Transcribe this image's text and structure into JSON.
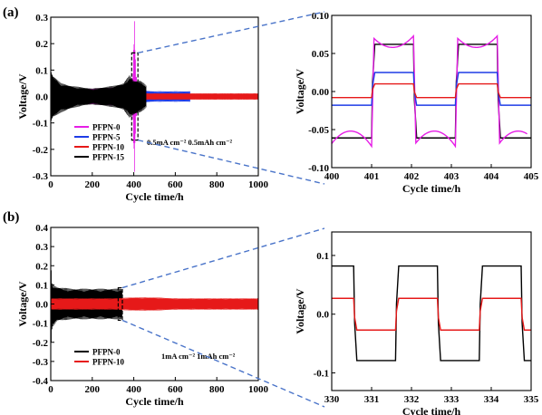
{
  "panels": [
    {
      "label": "(a)"
    },
    {
      "label": "(b)"
    }
  ],
  "chart_data": [
    {
      "id": "a-main",
      "type": "line",
      "xlabel": "Cycle time/h",
      "ylabel": "Voltage/V",
      "xlim": [
        0,
        1000
      ],
      "ylim": [
        -0.3,
        0.3
      ],
      "xticks": [
        "0",
        "200",
        "400",
        "600",
        "800",
        "1000"
      ],
      "yticks": [
        "-0.3",
        "-0.2",
        "-0.1",
        "0.0",
        "0.1",
        "0.2",
        "0.3"
      ],
      "xtick_values": [
        0,
        200,
        400,
        600,
        800,
        1000
      ],
      "ytick_values": [
        -0.3,
        -0.2,
        -0.1,
        0.0,
        0.1,
        0.2,
        0.3
      ],
      "annotation": "0.5mA cm⁻²  0.5mAh cm⁻²",
      "legend_position": "lower-left",
      "zoom_box": {
        "x": [
          390,
          420
        ],
        "y": [
          -0.165,
          0.165
        ]
      },
      "series": [
        {
          "name": "PFPN-0",
          "color": "#e61ee6",
          "kind": "band",
          "x": [
            0,
            30,
            100,
            200,
            300,
            350,
            380,
            395,
            403,
            410,
            418,
            430
          ],
          "top": [
            0.03,
            0.03,
            0.03,
            0.03,
            0.035,
            0.04,
            0.05,
            0.07,
            0.3,
            0.09,
            0.05,
            0.03
          ],
          "bottom": [
            -0.03,
            -0.03,
            -0.03,
            -0.03,
            -0.035,
            -0.04,
            -0.05,
            -0.07,
            -0.3,
            -0.09,
            -0.05,
            -0.03
          ]
        },
        {
          "name": "PFPN-5",
          "color": "#1f3ce6",
          "kind": "band",
          "x": [
            0,
            100,
            200,
            300,
            400,
            500,
            600,
            672
          ],
          "top": [
            0.025,
            0.02,
            0.02,
            0.022,
            0.025,
            0.02,
            0.02,
            0.02
          ],
          "bottom": [
            -0.025,
            -0.02,
            -0.02,
            -0.022,
            -0.025,
            -0.02,
            -0.02,
            -0.02
          ]
        },
        {
          "name": "PFPN-10",
          "color": "#e61919",
          "kind": "band",
          "x": [
            0,
            10,
            40,
            100,
            300,
            500,
            700,
            1000
          ],
          "top": [
            0.05,
            0.04,
            0.015,
            0.012,
            0.012,
            0.012,
            0.012,
            0.012
          ],
          "bottom": [
            -0.05,
            -0.04,
            -0.015,
            -0.012,
            -0.012,
            -0.012,
            -0.012,
            -0.012
          ]
        },
        {
          "name": "PFPN-15",
          "color": "#000000",
          "kind": "band",
          "x": [
            0,
            10,
            50,
            100,
            150,
            200,
            300,
            350,
            380,
            400,
            430,
            450,
            460
          ],
          "top": [
            0.1,
            0.08,
            0.05,
            0.04,
            0.035,
            0.03,
            0.04,
            0.05,
            0.08,
            0.06,
            0.06,
            0.05,
            0.04
          ],
          "bottom": [
            -0.1,
            -0.08,
            -0.06,
            -0.045,
            -0.035,
            -0.03,
            -0.04,
            -0.05,
            -0.08,
            -0.07,
            -0.06,
            -0.05,
            -0.04
          ]
        }
      ]
    },
    {
      "id": "a-zoom",
      "type": "line",
      "xlabel": "Cycle time/h",
      "ylabel": "Voltage/V",
      "xlim": [
        400,
        405
      ],
      "ylim": [
        -0.1,
        0.1
      ],
      "xticks": [
        "400",
        "401",
        "402",
        "403",
        "404",
        "405"
      ],
      "yticks": [
        "-0.10",
        "-0.05",
        "0.00",
        "0.05",
        "0.10"
      ],
      "xtick_values": [
        400,
        401,
        402,
        403,
        404,
        405
      ],
      "ytick_values": [
        -0.1,
        -0.05,
        0.0,
        0.05,
        0.1
      ],
      "series": [
        {
          "color": "#000000",
          "kind": "square",
          "x0": 400,
          "half_period": 1.05,
          "first_switch": 401.0,
          "start_sign": -1,
          "amp_pos": 0.062,
          "amp_neg": -0.061,
          "x_end": 405
        },
        {
          "color": "#e61ee6",
          "kind": "bow",
          "x0": 400,
          "half_period": 1.05,
          "first_switch": 401.0,
          "start_sign": -1,
          "edge_pos": 0.073,
          "mid_pos": 0.058,
          "edge_neg": -0.072,
          "mid_neg": -0.052,
          "x_end": 404.9
        },
        {
          "color": "#1f3ce6",
          "kind": "square",
          "x0": 400,
          "half_period": 1.05,
          "first_switch": 401.0,
          "start_sign": -1,
          "amp_pos": 0.025,
          "amp_neg": -0.018,
          "x_end": 405
        },
        {
          "color": "#e61919",
          "kind": "square",
          "x0": 400,
          "half_period": 1.05,
          "first_switch": 401.0,
          "start_sign": -1,
          "amp_pos": 0.01,
          "amp_neg": -0.008,
          "x_end": 405
        }
      ]
    },
    {
      "id": "b-main",
      "type": "line",
      "xlabel": "Cycle time/h",
      "ylabel": "Voltage/V",
      "xlim": [
        0,
        1000
      ],
      "ylim": [
        -0.4,
        0.4
      ],
      "xticks": [
        "0",
        "200",
        "400",
        "600",
        "800",
        "1000"
      ],
      "yticks": [
        "-0.4",
        "-0.3",
        "-0.2",
        "-0.1",
        "0.0",
        "0.1",
        "0.2",
        "0.3",
        "0.4"
      ],
      "xtick_values": [
        0,
        200,
        400,
        600,
        800,
        1000
      ],
      "ytick_values": [
        -0.4,
        -0.3,
        -0.2,
        -0.1,
        0.0,
        0.1,
        0.2,
        0.3,
        0.4
      ],
      "annotation": "1mA cm⁻²  1mAh cm⁻²",
      "legend_position": "lower-left",
      "zoom_box": {
        "x": [
          325,
          345
        ],
        "y": [
          -0.085,
          0.085
        ]
      },
      "series": [
        {
          "name": "PFPN-0",
          "color": "#000000",
          "kind": "band",
          "x": [
            0,
            3,
            10,
            30,
            60,
            100,
            200,
            300,
            340,
            345
          ],
          "top": [
            0.4,
            0.12,
            0.1,
            0.09,
            0.085,
            0.08,
            0.08,
            0.08,
            0.08,
            0.08
          ],
          "bottom": [
            -0.4,
            -0.15,
            -0.12,
            -0.09,
            -0.085,
            -0.08,
            -0.08,
            -0.08,
            -0.08,
            -0.08
          ]
        },
        {
          "name": "PFPN-10",
          "color": "#e61919",
          "kind": "band",
          "x": [
            0,
            100,
            200,
            300,
            400,
            500,
            600,
            700,
            800,
            1000
          ],
          "top": [
            0.03,
            0.03,
            0.03,
            0.03,
            0.035,
            0.035,
            0.03,
            0.03,
            0.03,
            0.03
          ],
          "bottom": [
            -0.03,
            -0.03,
            -0.03,
            -0.03,
            -0.035,
            -0.035,
            -0.03,
            -0.03,
            -0.03,
            -0.03
          ]
        }
      ]
    },
    {
      "id": "b-zoom",
      "type": "line",
      "xlabel": "Cycle time/h",
      "ylabel": "Voltage/V",
      "xlim": [
        330,
        335
      ],
      "ylim": [
        -0.13,
        0.14
      ],
      "xticks": [
        "330",
        "331",
        "332",
        "333",
        "334",
        "335"
      ],
      "yticks": [
        "-0.1",
        "0.0",
        "0.1"
      ],
      "xtick_values": [
        330,
        331,
        332,
        333,
        334,
        335
      ],
      "ytick_values": [
        -0.1,
        0.0,
        0.1
      ],
      "series": [
        {
          "color": "#000000",
          "kind": "square",
          "x0": 330,
          "half_period": 1.05,
          "first_switch": 330.55,
          "start_sign": 1,
          "amp_pos": 0.082,
          "amp_neg": -0.079,
          "x_end": 335
        },
        {
          "color": "#e61919",
          "kind": "square",
          "x0": 330,
          "half_period": 1.05,
          "first_switch": 330.55,
          "start_sign": 1,
          "amp_pos": 0.027,
          "amp_neg": -0.027,
          "x_end": 335
        }
      ]
    }
  ]
}
